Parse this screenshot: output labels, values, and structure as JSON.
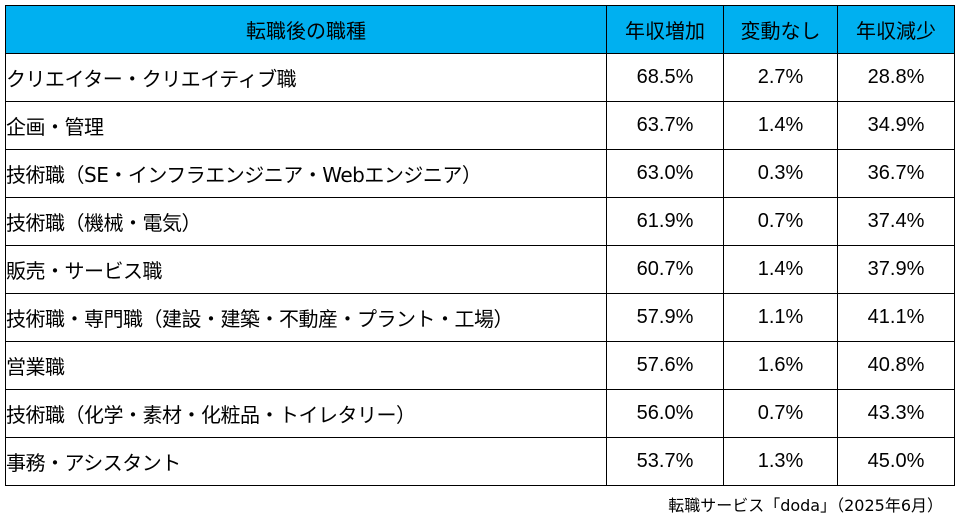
{
  "table": {
    "headers": {
      "job": "転職後の職種",
      "increase": "年収増加",
      "same": "変動なし",
      "decrease": "年収減少"
    },
    "rows": [
      {
        "job": "クリエイター・クリエイティブ職",
        "increase": "68.5%",
        "same": "2.7%",
        "decrease": "28.8%"
      },
      {
        "job": "企画・管理",
        "increase": "63.7%",
        "same": "1.4%",
        "decrease": "34.9%"
      },
      {
        "job": "技術職（SE・インフラエンジニア・Webエンジニア）",
        "increase": "63.0%",
        "same": "0.3%",
        "decrease": "36.7%"
      },
      {
        "job": "技術職（機械・電気）",
        "increase": "61.9%",
        "same": "0.7%",
        "decrease": "37.4%"
      },
      {
        "job": "販売・サービス職",
        "increase": "60.7%",
        "same": "1.4%",
        "decrease": "37.9%"
      },
      {
        "job": "技術職・専門職（建設・建築・不動産・プラント・工場）",
        "increase": "57.9%",
        "same": "1.1%",
        "decrease": "41.1%"
      },
      {
        "job": "営業職",
        "increase": "57.6%",
        "same": "1.6%",
        "decrease": "40.8%"
      },
      {
        "job": "技術職（化学・素材・化粧品・トイレタリー）",
        "increase": "56.0%",
        "same": "0.7%",
        "decrease": "43.3%"
      },
      {
        "job": "事務・アシスタント",
        "increase": "53.7%",
        "same": "1.3%",
        "decrease": "45.0%"
      }
    ]
  },
  "source": "転職サービス「doda」（2025年6月）",
  "colors": {
    "header_background": "#00b0f0",
    "border": "#000000",
    "text": "#000000"
  }
}
